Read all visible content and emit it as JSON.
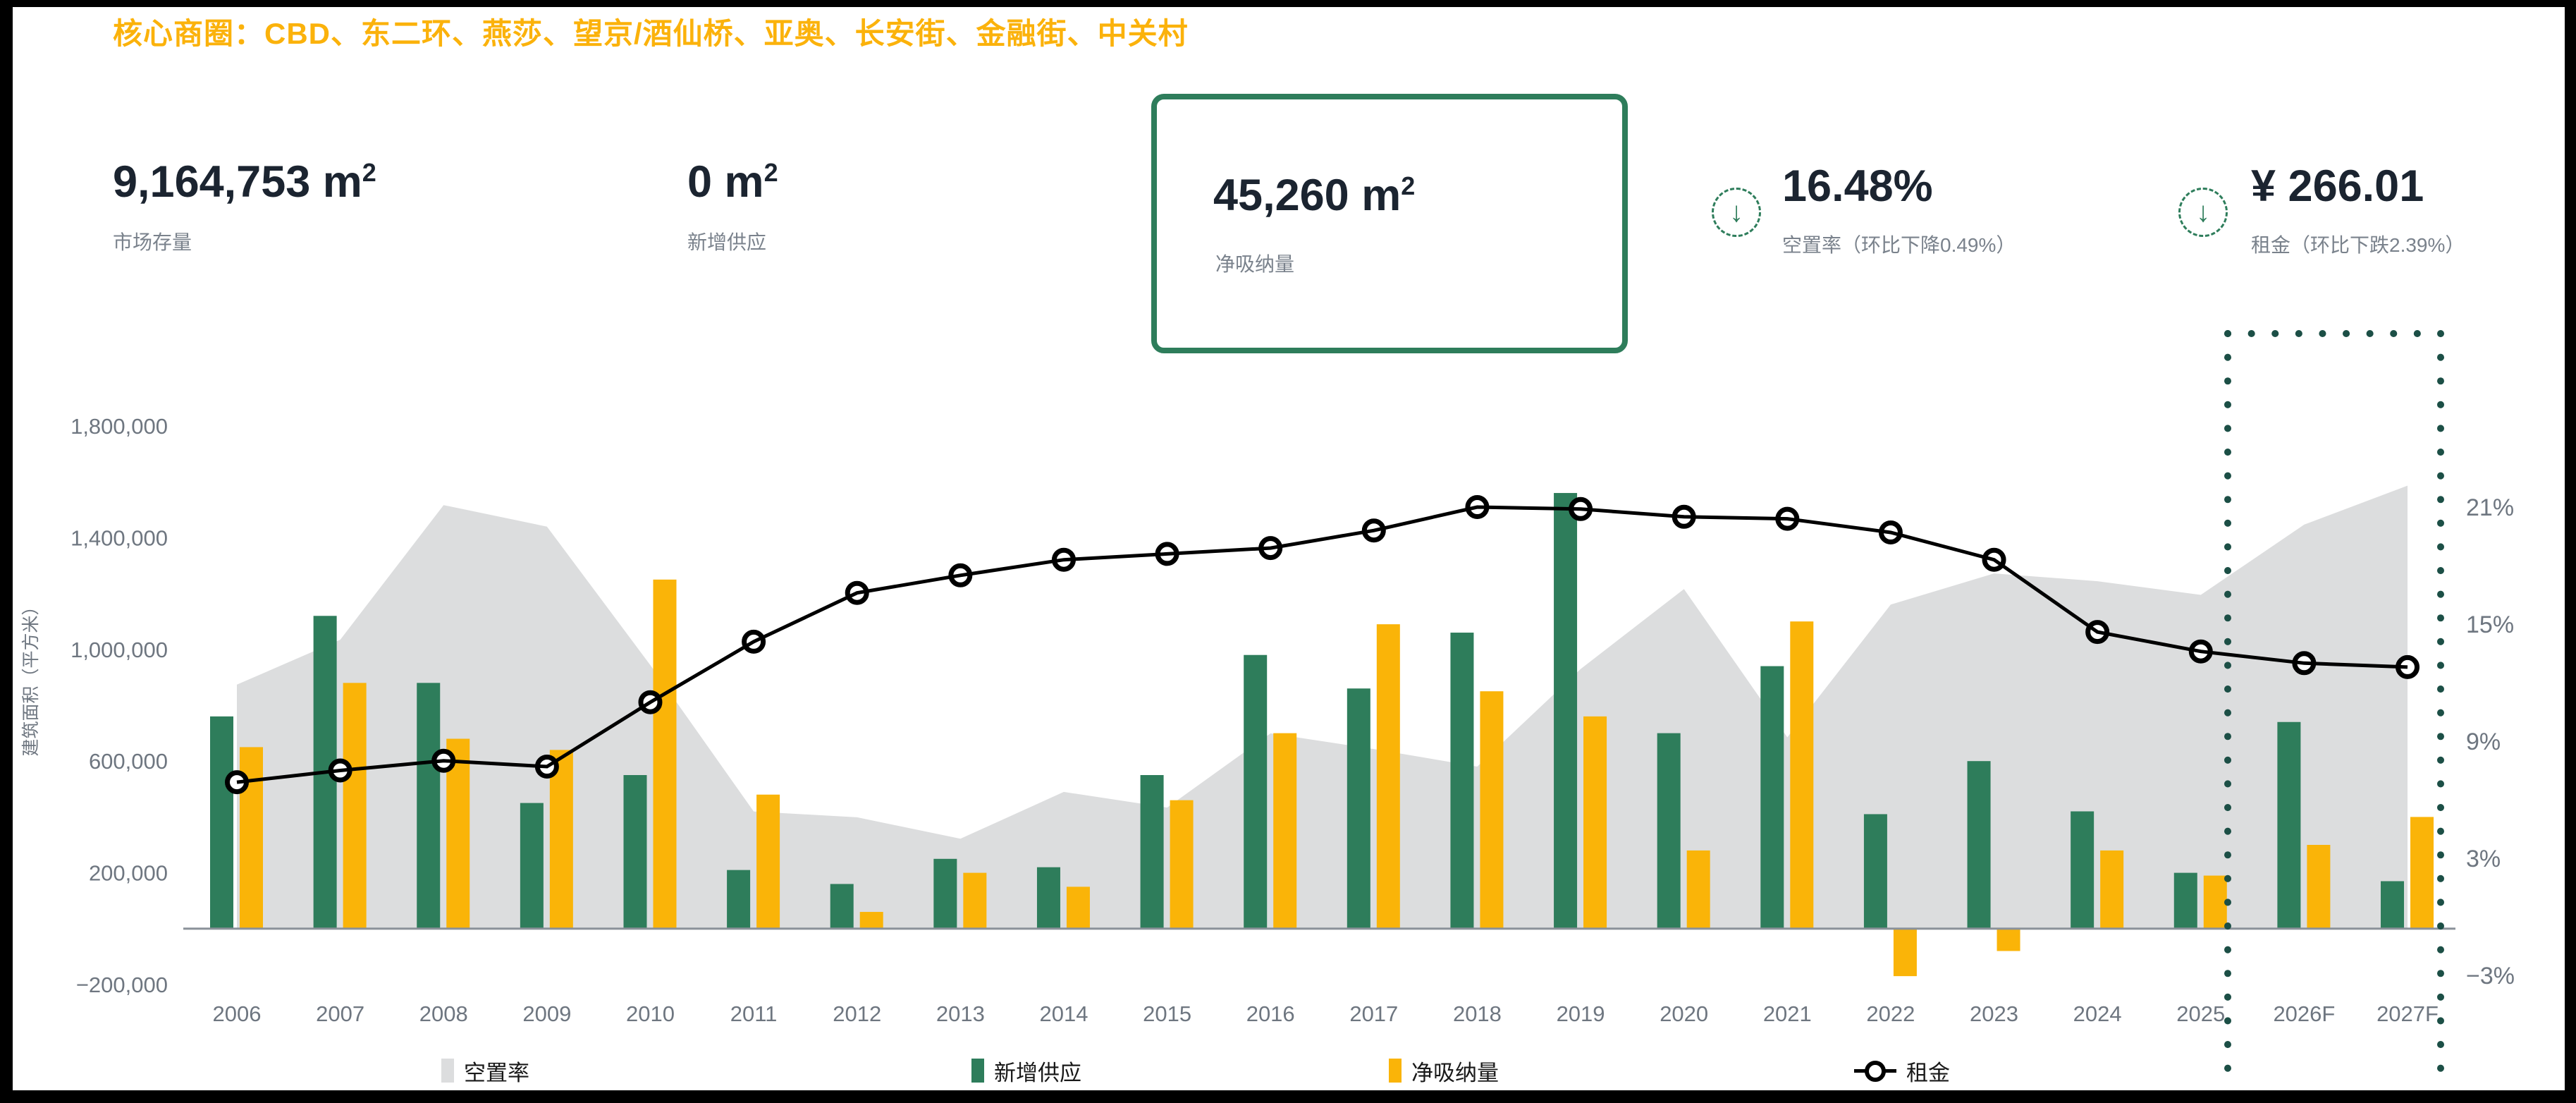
{
  "title": "核心商圈：CBD、东二环、燕莎、望京/酒仙桥、亚奥、长安街、金融街、中关村",
  "kpis": {
    "stock": {
      "value": "9,164,753 m",
      "sup": "2",
      "label": "市场存量"
    },
    "new_supply": {
      "value": "0 m",
      "sup": "2",
      "label": "新增供应"
    },
    "net_absorption": {
      "value": "45,260 m",
      "sup": "2",
      "label": "净吸纳量"
    },
    "vacancy": {
      "value": "16.48%",
      "label": "空置率（环比下降0.49%）",
      "trend": "down"
    },
    "rent": {
      "value": "¥ 266.01",
      "label": "租金（环比下跌2.39%）",
      "trend": "down"
    }
  },
  "legend": [
    {
      "label": "空置率",
      "swatch": "#DCDDDE",
      "type": "area"
    },
    {
      "label": "新增供应",
      "swatch": "#2E7D5B",
      "type": "bar"
    },
    {
      "label": "净吸纳量",
      "swatch": "#FAB408",
      "type": "bar"
    },
    {
      "label": "租金",
      "swatch": "#000000",
      "type": "line-marker"
    }
  ],
  "colors": {
    "supply_bar": "#2E7D5B",
    "absorption_bar": "#FAB408",
    "vacancy_area": "#DCDDDE",
    "rent_line": "#000000",
    "axis_text": "#6E7680",
    "baseline": "#8A9199",
    "forecast_dots": "#1C4F46",
    "title_gold": "#FBB20B",
    "kpi_green": "#2E7D5B"
  },
  "chart_data": {
    "type": "combo",
    "categories": [
      "2006",
      "2007",
      "2008",
      "2009",
      "2010",
      "2011",
      "2012",
      "2013",
      "2014",
      "2015",
      "2016",
      "2017",
      "2018",
      "2019",
      "2020",
      "2021",
      "2022",
      "2023",
      "2024",
      "2025",
      "2026F",
      "2027F"
    ],
    "series": [
      {
        "name": "空置率",
        "type": "area",
        "axis": "right_percent",
        "color": "#DCDDDE",
        "values": [
          11.9,
          14.2,
          21.1,
          20.0,
          12.9,
          5.4,
          5.1,
          4.0,
          6.4,
          5.6,
          9.4,
          8.6,
          7.7,
          12.7,
          16.8,
          9.2,
          16.0,
          17.6,
          17.2,
          16.5,
          20.1,
          22.1
        ]
      },
      {
        "name": "新增供应",
        "type": "bar",
        "axis": "left_sqm",
        "color": "#2E7D5B",
        "values": [
          760000,
          1120000,
          880000,
          450000,
          550000,
          210000,
          160000,
          250000,
          220000,
          550000,
          980000,
          860000,
          1060000,
          1560000,
          700000,
          940000,
          410000,
          600000,
          420000,
          200000,
          740000,
          170000
        ]
      },
      {
        "name": "净吸纳量",
        "type": "bar",
        "axis": "left_sqm",
        "color": "#FAB408",
        "values": [
          650000,
          880000,
          680000,
          640000,
          1250000,
          480000,
          60000,
          200000,
          150000,
          460000,
          700000,
          1090000,
          850000,
          760000,
          280000,
          1100000,
          -170000,
          -80000,
          280000,
          190000,
          300000,
          400000
        ]
      },
      {
        "name": "租金",
        "type": "line",
        "axis": "right_percent_position",
        "color": "#000000",
        "values": [
          6.9,
          7.5,
          8.0,
          7.7,
          11.0,
          14.1,
          16.6,
          17.5,
          18.3,
          18.6,
          18.9,
          19.8,
          21.0,
          20.9,
          20.5,
          20.4,
          19.7,
          18.3,
          14.6,
          13.6,
          13.0,
          12.8
        ]
      }
    ],
    "left_axis": {
      "title": "建筑面积（平方米）",
      "tick_labels": [
        "1,800,000",
        "1,400,000",
        "1,000,000",
        "600,000",
        "200,000",
        "−200,000"
      ],
      "tick_values": [
        1800000,
        1400000,
        1000000,
        600000,
        200000,
        -200000
      ]
    },
    "right_axis": {
      "tick_labels": [
        "21%",
        "15%",
        "9%",
        "3%",
        "−3%"
      ],
      "tick_values": [
        21,
        15,
        9,
        3,
        -3
      ]
    },
    "forecast_highlight": {
      "categories": [
        "2026F",
        "2027F"
      ]
    },
    "grid": "off",
    "legend_position": "bottom"
  }
}
